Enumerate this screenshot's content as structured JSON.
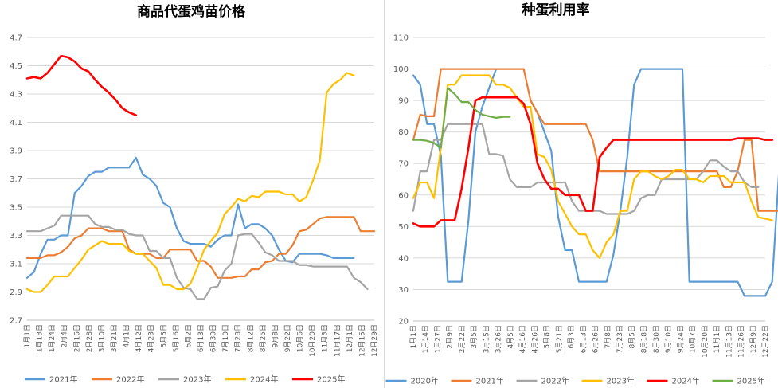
{
  "chart_data": [
    {
      "type": "line",
      "title": "商品代蛋鸡苗价格",
      "ylim": [
        2.7,
        4.7
      ],
      "yticks": [
        "2.7",
        "2.9",
        "3.1",
        "3.3",
        "3.5",
        "3.7",
        "3.9",
        "4.1",
        "4.3",
        "4.5",
        "4.7"
      ],
      "x_tick_labels": [
        "1月1日",
        "1月13日",
        "1月24日",
        "2月4日",
        "2月16日",
        "2月28日",
        "3月10日",
        "3月21日",
        "4月1日",
        "4月12日",
        "4月23日",
        "5月5日",
        "5月16日",
        "6月2日",
        "6月13日",
        "6月30日",
        "7月10日",
        "7月28日",
        "8月12日",
        "8月25日",
        "9月8日",
        "9月22日",
        "10月6日",
        "10月20日",
        "11月3日",
        "11月17日",
        "12月1日",
        "12月15日",
        "12月29日"
      ],
      "x_count": 52,
      "colors": {
        "2021年": "#5b9bd5",
        "2022年": "#ed7d31",
        "2023年": "#a5a5a5",
        "2024年": "#ffc000",
        "2025年": "#ff0000"
      },
      "series": [
        {
          "name": "2021年",
          "values": [
            3.0,
            3.04,
            3.17,
            3.27,
            3.27,
            3.3,
            3.3,
            3.6,
            3.65,
            3.72,
            3.75,
            3.75,
            3.78,
            3.78,
            3.78,
            3.78,
            3.85,
            3.73,
            3.7,
            3.65,
            3.53,
            3.5,
            3.35,
            3.26,
            3.24,
            3.24,
            3.24,
            3.22,
            3.27,
            3.3,
            3.3,
            3.52,
            3.35,
            3.38,
            3.38,
            3.35,
            3.3,
            3.2,
            3.12,
            3.11,
            3.17,
            3.17,
            3.17,
            3.17,
            3.16,
            3.14,
            3.14,
            3.14,
            3.14
          ]
        },
        {
          "name": "2022年",
          "values": [
            3.14,
            3.14,
            3.14,
            3.16,
            3.16,
            3.18,
            3.22,
            3.28,
            3.3,
            3.35,
            3.35,
            3.35,
            3.33,
            3.33,
            3.33,
            3.2,
            3.17,
            3.17,
            3.17,
            3.14,
            3.14,
            3.2,
            3.2,
            3.2,
            3.2,
            3.12,
            3.12,
            3.08,
            3.0,
            3.0,
            3.0,
            3.01,
            3.01,
            3.06,
            3.06,
            3.11,
            3.12,
            3.17,
            3.17,
            3.23,
            3.33,
            3.34,
            3.38,
            3.42,
            3.43,
            3.43,
            3.43,
            3.43,
            3.43,
            3.33,
            3.33,
            3.33
          ]
        },
        {
          "name": "2023年",
          "values": [
            3.33,
            3.33,
            3.33,
            3.35,
            3.37,
            3.44,
            3.44,
            3.44,
            3.44,
            3.44,
            3.38,
            3.36,
            3.36,
            3.34,
            3.34,
            3.31,
            3.3,
            3.3,
            3.19,
            3.19,
            3.14,
            3.14,
            3.0,
            2.93,
            2.92,
            2.85,
            2.85,
            2.93,
            2.94,
            3.05,
            3.1,
            3.3,
            3.31,
            3.31,
            3.25,
            3.18,
            3.16,
            3.12,
            3.12,
            3.12,
            3.09,
            3.09,
            3.08,
            3.08,
            3.08,
            3.08,
            3.08,
            3.08,
            3.0,
            2.97,
            2.92
          ]
        },
        {
          "name": "2024年",
          "values": [
            2.92,
            2.9,
            2.9,
            2.95,
            3.01,
            3.01,
            3.01,
            3.07,
            3.13,
            3.2,
            3.23,
            3.26,
            3.24,
            3.24,
            3.24,
            3.19,
            3.17,
            3.17,
            3.12,
            3.07,
            2.95,
            2.95,
            2.92,
            2.92,
            2.96,
            3.07,
            3.2,
            3.26,
            3.32,
            3.45,
            3.5,
            3.56,
            3.54,
            3.58,
            3.57,
            3.61,
            3.61,
            3.61,
            3.59,
            3.59,
            3.54,
            3.57,
            3.69,
            3.83,
            4.31,
            4.37,
            4.4,
            4.45,
            4.43
          ]
        },
        {
          "name": "2025年",
          "values": [
            4.41,
            4.42,
            4.41,
            4.45,
            4.51,
            4.57,
            4.56,
            4.53,
            4.48,
            4.46,
            4.4,
            4.35,
            4.31,
            4.26,
            4.2,
            4.17,
            4.15
          ]
        }
      ]
    },
    {
      "type": "line",
      "title": "种蛋利用率",
      "ylim": [
        20,
        110
      ],
      "yticks": [
        "20",
        "30",
        "40",
        "50",
        "60",
        "70",
        "80",
        "90",
        "100",
        "110"
      ],
      "x_tick_labels": [
        "1月1日",
        "1月14日",
        "1月27日",
        "2月9日",
        "2月22日",
        "3月5日",
        "3月15日",
        "3月26日",
        "4月5日",
        "4月16日",
        "4月26日",
        "5月8日",
        "5月21日",
        "6月3日",
        "6月13日",
        "6月26日",
        "7月8日",
        "7月23日",
        "8月5日",
        "8月18日",
        "8月30日",
        "9月10日",
        "9月24日",
        "10月7日",
        "10月20日",
        "11月1日",
        "11月13日",
        "11月26日",
        "12月9日",
        "12月22日"
      ],
      "x_count": 52,
      "colors": {
        "2020年": "#5b9bd5",
        "2021年": "#ed7d31",
        "2022年": "#a5a5a5",
        "2023年": "#ffc000",
        "2024年": "#ff0000",
        "2025年": "#70ad47"
      },
      "series": [
        {
          "name": "2020年",
          "values": [
            98,
            95,
            82.5,
            82.5,
            72.5,
            32.5,
            32.5,
            32.5,
            52,
            80,
            88,
            94,
            100,
            null,
            null,
            null,
            null,
            90,
            86,
            80,
            74,
            53,
            42.5,
            42.5,
            32.5,
            32.5,
            32.5,
            32.5,
            32.5,
            41,
            55,
            72,
            95,
            100,
            100,
            100,
            100,
            100,
            100,
            100,
            32.5,
            32.5,
            32.5,
            32.5,
            32.5,
            32.5,
            32.5,
            32.5,
            28,
            28,
            28,
            28,
            32.5,
            67.5,
            67.5,
            77.5
          ]
        },
        {
          "name": "2021年",
          "values": [
            77.5,
            85.5,
            85,
            85,
            100,
            100,
            100,
            100,
            100,
            100,
            100,
            100,
            100,
            100,
            100,
            100,
            100,
            90,
            86,
            82.5,
            82.5,
            82.5,
            82.5,
            82.5,
            82.5,
            82.5,
            77.5,
            67.5,
            67.5,
            67.5,
            67.5,
            67.5,
            67.5,
            67.5,
            67.5,
            67.5,
            67.5,
            67.5,
            67.5,
            67.5,
            67.5,
            67.5,
            67.5,
            67.5,
            67.5,
            62.5,
            62.5,
            67.5,
            77.5,
            77.5,
            55,
            55,
            55,
            55,
            55,
            55
          ]
        },
        {
          "name": "2022年",
          "values": [
            55,
            67.5,
            67.5,
            77.5,
            77.5,
            82.5,
            82.5,
            82.5,
            82.5,
            82.5,
            82.5,
            73,
            73,
            72.5,
            65,
            62.5,
            62.5,
            62.5,
            64,
            64,
            64,
            64,
            64,
            58,
            55,
            55,
            55,
            55,
            54,
            54,
            54,
            54,
            55,
            59,
            60,
            60,
            65,
            65,
            65,
            65,
            65,
            65,
            67.5,
            71,
            71,
            69,
            67.5,
            67.5,
            64,
            62.5,
            62.5
          ]
        },
        {
          "name": "2023年",
          "values": [
            59,
            64,
            64,
            59,
            75,
            95,
            95,
            98,
            98,
            98,
            98,
            98,
            95,
            95,
            94,
            91,
            88,
            88,
            73,
            72,
            68,
            58,
            54,
            50,
            47.5,
            47.5,
            42.5,
            40,
            45,
            47.5,
            55,
            55,
            65,
            67.5,
            67.5,
            66,
            65,
            66,
            68,
            68,
            65,
            65,
            64,
            66,
            66,
            66,
            64,
            64,
            64,
            58,
            53,
            52.5,
            52
          ]
        },
        {
          "name": "2024年",
          "values": [
            51,
            50,
            50,
            50,
            52,
            52,
            52,
            62,
            75,
            90,
            91,
            91,
            91,
            91,
            91,
            91,
            89,
            82.5,
            70,
            65,
            62,
            62,
            60,
            60,
            60,
            55,
            55,
            72,
            75,
            77.5,
            77.5,
            77.5,
            77.5,
            77.5,
            77.5,
            77.5,
            77.5,
            77.5,
            77.5,
            77.5,
            77.5,
            77.5,
            77.5,
            77.5,
            77.5,
            77.5,
            77.5,
            78,
            78,
            78,
            78,
            77.5,
            77.5
          ]
        },
        {
          "name": "2025年",
          "values": [
            77.5,
            77.5,
            77.2,
            76.5,
            75,
            94,
            92,
            89.5,
            89.5,
            87,
            85.5,
            85,
            84.5,
            84.8,
            84.8
          ]
        }
      ]
    }
  ]
}
